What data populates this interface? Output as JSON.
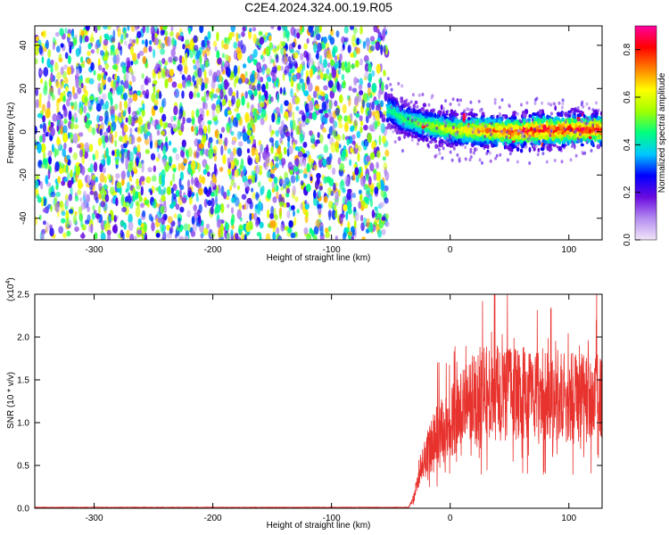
{
  "title": "C2E4.2024.324.00.19.R05",
  "chart_data": [
    {
      "type": "heatmap",
      "xlabel": "Height of straight line (km)",
      "ylabel": "Frequency (Hz)",
      "xlim": [
        -350,
        128
      ],
      "ylim": [
        -50,
        49
      ],
      "xticks": [
        -300,
        -200,
        -100,
        0,
        100
      ],
      "yticks": [
        -40,
        -20,
        0,
        20,
        40
      ],
      "grid": false,
      "noise_region_x": [
        -350,
        -53
      ],
      "signal_band": {
        "x_start": -53,
        "center_freq": [
          {
            "x": -50,
            "y": 10
          },
          {
            "x": -40,
            "y": 6
          },
          {
            "x": -20,
            "y": 3
          },
          {
            "x": 0,
            "y": 1
          },
          {
            "x": 50,
            "y": 0
          },
          {
            "x": 100,
            "y": 1
          },
          {
            "x": 128,
            "y": 1
          }
        ],
        "width_hz": 8
      },
      "colorbar": {
        "label": "Normalized spectral amplitude",
        "range": [
          0,
          0.9
        ],
        "ticks": [
          0.0,
          0.2,
          0.4,
          0.6,
          0.8
        ],
        "colormap": [
          "#f2e6f9",
          "#b48cf0",
          "#6a0ae0",
          "#0000ff",
          "#00c8ff",
          "#00ff80",
          "#a0ff00",
          "#ffff00",
          "#ff8000",
          "#ff0000",
          "#ff00a0"
        ]
      }
    },
    {
      "type": "line",
      "xlabel": "Height of straight line (km)",
      "ylabel": "SNR (10 * v/v)",
      "yscale_label": "(x10",
      "yscale_exponent": "4",
      "xlim": [
        -350,
        128
      ],
      "ylim": [
        0,
        2.5
      ],
      "xticks": [
        -300,
        -200,
        -100,
        0,
        100
      ],
      "yticks": [
        0.0,
        0.5,
        1.0,
        1.5,
        2.0,
        2.5
      ],
      "grid": false,
      "series": [
        {
          "color": "#e8322d",
          "envelope": [
            {
              "x": -350,
              "y": 0.01
            },
            {
              "x": -35,
              "y": 0.01
            },
            {
              "x": -30,
              "y": 0.15
            },
            {
              "x": -25,
              "y": 0.55
            },
            {
              "x": -20,
              "y": 0.7
            },
            {
              "x": -10,
              "y": 0.95
            },
            {
              "x": 0,
              "y": 1.1
            },
            {
              "x": 10,
              "y": 1.25
            },
            {
              "x": 20,
              "y": 1.4
            },
            {
              "x": 30,
              "y": 1.5
            },
            {
              "x": 50,
              "y": 1.45
            },
            {
              "x": 80,
              "y": 1.45
            },
            {
              "x": 100,
              "y": 1.4
            },
            {
              "x": 128,
              "y": 1.4
            }
          ],
          "peak_max": 2.5
        }
      ]
    }
  ]
}
